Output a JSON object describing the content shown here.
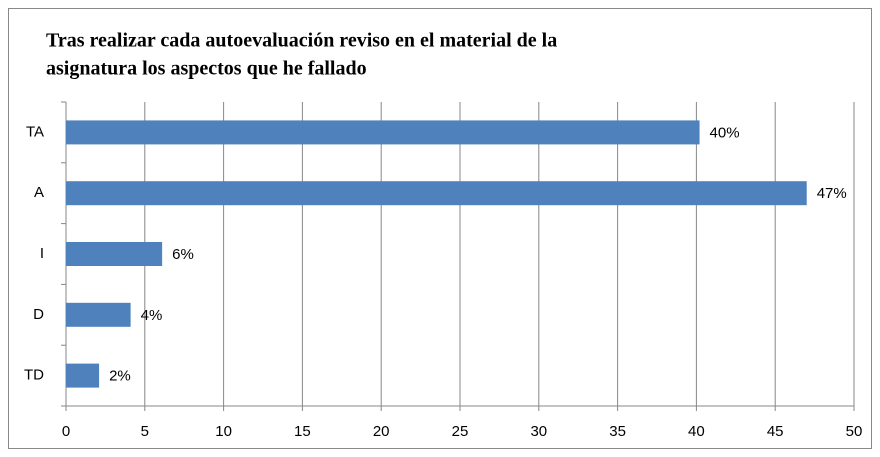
{
  "chart_data": {
    "type": "bar",
    "orientation": "horizontal",
    "title": [
      "Tras realizar cada autoevaluación reviso en el material de la",
      "asignatura los aspectos que he fallado"
    ],
    "categories": [
      "TA",
      "A",
      "I",
      "D",
      "TD"
    ],
    "values": [
      40.2,
      47,
      6.1,
      4.1,
      2.1
    ],
    "value_labels": [
      "40%",
      "47%",
      "6%",
      "4%",
      "2%"
    ],
    "color": "#4f81bd",
    "xlim": [
      0,
      50
    ],
    "xticks": [
      0,
      5,
      10,
      15,
      20,
      25,
      30,
      35,
      40,
      45,
      50
    ],
    "grid": true
  }
}
